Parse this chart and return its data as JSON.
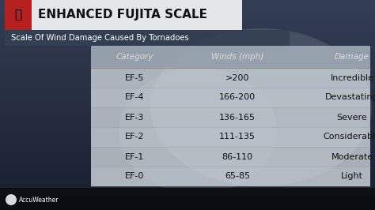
{
  "title": "ENHANCED FUJITA SCALE",
  "subtitle": "Scale Of Wind Damage Caused By Tornadoes",
  "col_headers": [
    "Category",
    "Winds (mph)",
    "Damage"
  ],
  "rows": [
    [
      "EF-5",
      ">200",
      "Incredible"
    ],
    [
      "EF-4",
      "166-200",
      "Devastating"
    ],
    [
      "EF-3",
      "136-165",
      "Severe"
    ],
    [
      "EF-2",
      "111-135",
      "Considerable"
    ],
    [
      "EF-1",
      "86-110",
      "Moderate"
    ],
    [
      "EF-0",
      "65-85",
      "Light"
    ]
  ],
  "bg_dark": "#1c2230",
  "bg_mid": "#2e3a4a",
  "red_box": "#b52020",
  "title_bg": "#f2f2f2",
  "subtitle_bg_color": [
    0.2,
    0.25,
    0.32
  ],
  "subtitle_bg_alpha": 0.88,
  "table_bg_color": [
    0.88,
    0.9,
    0.92
  ],
  "table_bg_alpha": 0.72,
  "header_row_color": [
    0.55,
    0.6,
    0.65
  ],
  "header_row_alpha": 0.75,
  "col_header_text_color": "#dddddd",
  "row_text_color": "#111111",
  "title_color": "#111111",
  "subtitle_color": "#ffffff",
  "accuweather_text": "AccuWeather",
  "figsize": [
    4.74,
    2.66
  ],
  "dpi": 100
}
